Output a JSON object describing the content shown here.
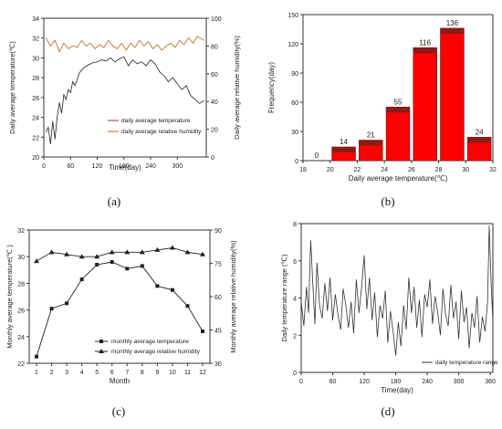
{
  "panel_labels": {
    "a": "(a)",
    "b": "(b)",
    "c": "(c)",
    "d": "(d)"
  },
  "colors": {
    "temp_line": "#8b3a3a",
    "humidity_line": "#b5651d",
    "bar_fill": "#ff0000",
    "bar_dark": "#8b1a1a",
    "series_black": "#222222"
  },
  "chart_data": [
    {
      "id": "a",
      "type": "line",
      "xlabel": "Time(day)",
      "ylabel_left": "Daily average temperature(℃)",
      "ylabel_right": "Daily average relative humidity(%)",
      "xlim": [
        0,
        365
      ],
      "ylim_left": [
        20,
        34
      ],
      "ylim_right": [
        0,
        100
      ],
      "xticks": [
        0,
        60,
        120,
        180,
        240,
        300
      ],
      "yticks_left": [
        20,
        22,
        24,
        26,
        28,
        30,
        32,
        34
      ],
      "yticks_right": [
        0,
        20,
        40,
        60,
        80,
        100
      ],
      "grid": false,
      "legend": "bottom-right",
      "series": [
        {
          "name": "daily average temperature",
          "axis": "left",
          "x": [
            5,
            10,
            15,
            20,
            25,
            30,
            35,
            40,
            45,
            50,
            55,
            60,
            65,
            70,
            75,
            80,
            90,
            100,
            110,
            120,
            130,
            140,
            150,
            160,
            170,
            180,
            190,
            200,
            210,
            220,
            230,
            240,
            250,
            260,
            270,
            280,
            290,
            300,
            310,
            320,
            330,
            340,
            350,
            360
          ],
          "values": [
            22.5,
            23,
            21.3,
            23.6,
            21.8,
            24,
            25.5,
            24.4,
            26.3,
            25.8,
            26.8,
            26.5,
            27.6,
            27.2,
            27.8,
            28.5,
            29,
            29.3,
            29.5,
            29.6,
            29.8,
            29.7,
            30,
            29.6,
            29.9,
            30.1,
            29.2,
            29.8,
            29.4,
            29.6,
            29.2,
            29.8,
            29.4,
            28.6,
            28.2,
            27.6,
            28,
            27.4,
            26.8,
            27.2,
            26.2,
            25.8,
            25.4,
            25.7
          ]
        },
        {
          "name": "daily average relative humidity",
          "axis": "right",
          "x": [
            5,
            15,
            25,
            35,
            45,
            55,
            65,
            75,
            85,
            95,
            105,
            115,
            125,
            135,
            145,
            155,
            165,
            175,
            185,
            195,
            205,
            215,
            225,
            235,
            245,
            255,
            265,
            275,
            285,
            295,
            305,
            315,
            325,
            335,
            345,
            355,
            360
          ],
          "values": [
            86,
            80,
            84,
            76,
            82,
            78,
            80,
            79,
            84,
            80,
            82,
            78,
            81,
            79,
            84,
            80,
            78,
            82,
            77,
            82,
            79,
            84,
            80,
            83,
            78,
            81,
            77,
            80,
            82,
            79,
            84,
            81,
            86,
            82,
            87,
            85,
            84
          ]
        }
      ]
    },
    {
      "id": "b",
      "type": "bar",
      "xlabel": "Daily average temperature(℃)",
      "ylabel": "Frequency(day)",
      "xlim": [
        18,
        32
      ],
      "ylim": [
        0,
        150
      ],
      "xticks": [
        18,
        20,
        22,
        24,
        26,
        28,
        30,
        32
      ],
      "yticks": [
        0,
        30,
        60,
        90,
        120,
        150
      ],
      "grid": false,
      "bins": [
        [
          20,
          22
        ],
        [
          22,
          24
        ],
        [
          24,
          26
        ],
        [
          26,
          28
        ],
        [
          28,
          30
        ],
        [
          30,
          32
        ]
      ],
      "values": [
        14,
        21,
        55,
        116,
        136,
        24
      ],
      "extra_labels": [
        {
          "x": 19,
          "text": "0"
        }
      ],
      "data_labels": [
        "14",
        "21",
        "55",
        "116",
        "136",
        "24"
      ]
    },
    {
      "id": "c",
      "type": "line",
      "xlabel": "Month",
      "ylabel_left": "Monthly average temperature(℃ )",
      "ylabel_right": "Monthly average relative humidity(%)",
      "categories": [
        "1",
        "2",
        "3",
        "4",
        "5",
        "6",
        "7",
        "8",
        "9",
        "10",
        "11",
        "12"
      ],
      "ylim_left": [
        22,
        32
      ],
      "ylim_right": [
        30,
        90
      ],
      "yticks_left": [
        22,
        24,
        26,
        28,
        30,
        32
      ],
      "yticks_right": [
        30,
        45,
        60,
        75,
        90
      ],
      "grid": false,
      "legend": "bottom-right",
      "series": [
        {
          "name": "monthly average temperature",
          "axis": "left",
          "marker": "square",
          "values": [
            22.5,
            26.1,
            26.5,
            28.3,
            29.4,
            29.6,
            29.1,
            29.3,
            27.8,
            27.5,
            26.3,
            24.4
          ]
        },
        {
          "name": "monthly average relative humidity",
          "axis": "right",
          "marker": "triangle",
          "values": [
            76,
            80,
            79,
            78,
            78,
            80,
            80,
            80,
            81,
            82,
            80,
            79
          ]
        }
      ]
    },
    {
      "id": "d",
      "type": "line",
      "xlabel": "Time(day)",
      "ylabel": "Daily temperature range (℃)",
      "xlim": [
        0,
        365
      ],
      "ylim": [
        0,
        8
      ],
      "xticks": [
        0,
        60,
        120,
        180,
        240,
        300,
        360
      ],
      "yticks": [
        0,
        2,
        4,
        6,
        8
      ],
      "grid": false,
      "legend": "bottom-right",
      "series": [
        {
          "name": "daily temperature range",
          "x": [
            0,
            5,
            10,
            14,
            18,
            22,
            26,
            30,
            35,
            40,
            45,
            50,
            55,
            60,
            65,
            70,
            75,
            80,
            85,
            90,
            95,
            100,
            105,
            110,
            115,
            120,
            125,
            130,
            135,
            140,
            145,
            150,
            155,
            160,
            165,
            170,
            175,
            180,
            185,
            190,
            195,
            200,
            205,
            210,
            215,
            220,
            225,
            230,
            235,
            240,
            245,
            250,
            255,
            260,
            265,
            270,
            275,
            280,
            285,
            290,
            295,
            300,
            305,
            310,
            315,
            320,
            325,
            330,
            335,
            340,
            345,
            350,
            355,
            358,
            362,
            365
          ],
          "values": [
            3.8,
            2.5,
            4.6,
            3.2,
            7.1,
            4.8,
            2.6,
            5.9,
            3.6,
            2.9,
            4.8,
            3.3,
            5.1,
            2.8,
            4.2,
            3.1,
            2.3,
            4.5,
            3.6,
            2.4,
            3.8,
            2.1,
            5.0,
            3.2,
            4.6,
            6.3,
            3.4,
            5.1,
            2.8,
            4.3,
            1.9,
            3.6,
            2.9,
            4.4,
            1.6,
            3.3,
            2.2,
            0.9,
            2.7,
            1.4,
            3.6,
            2.3,
            5.1,
            3.2,
            4.6,
            2.4,
            3.9,
            1.9,
            4.2,
            3.5,
            5.0,
            2.6,
            4.1,
            3.2,
            2.0,
            4.5,
            3.1,
            2.5,
            4.7,
            2.9,
            3.8,
            1.8,
            4.4,
            2.7,
            3.5,
            1.3,
            3.2,
            2.4,
            4.1,
            1.6,
            3.0,
            2.2,
            3.8,
            7.9,
            4.5,
            2.8
          ]
        }
      ]
    }
  ]
}
